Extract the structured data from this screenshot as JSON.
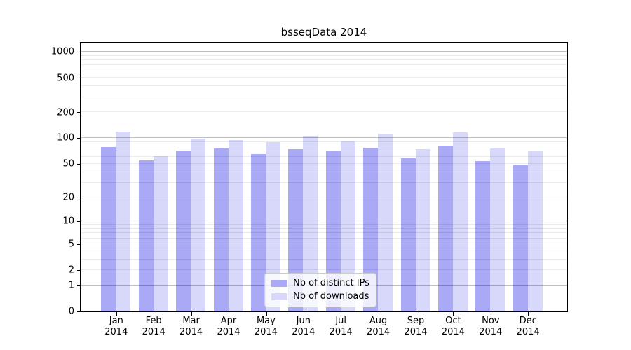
{
  "figure": {
    "title": "bsseqData 2014"
  },
  "legend": {
    "items": [
      {
        "label": "Nb of distinct IPs",
        "color": "#a9a9f6"
      },
      {
        "label": "Nb of downloads",
        "color": "#d8d8fa"
      }
    ]
  },
  "chart_data": {
    "type": "bar",
    "title": "bsseqData 2014",
    "categories": [
      "Jan",
      "Feb",
      "Mar",
      "Apr",
      "May",
      "Jun",
      "Jul",
      "Aug",
      "Sep",
      "Oct",
      "Nov",
      "Dec"
    ],
    "year": "2014",
    "series": [
      {
        "name": "Nb of distinct IPs",
        "color": "#a9a9f6",
        "values": [
          79,
          55,
          72,
          76,
          65,
          75,
          70,
          78,
          58,
          82,
          54,
          48
        ]
      },
      {
        "name": "Nb of downloads",
        "color": "#d8d8fa",
        "values": [
          120,
          62,
          98,
          96,
          90,
          106,
          91,
          113,
          75,
          117,
          76,
          70
        ]
      }
    ],
    "xlabel": "",
    "ylabel": "",
    "y_scale": "pseudo-log: y position proportional to log2(value+1), 0 at baseline",
    "y_ticks": [
      0,
      1,
      2,
      5,
      10,
      20,
      50,
      100,
      200,
      500,
      1000
    ],
    "grid": {
      "on": true,
      "major_lines": [
        1,
        10,
        100,
        1000
      ],
      "minor_lines_per_decade": [
        2,
        3,
        4,
        5,
        6,
        7,
        8,
        9
      ]
    },
    "legend_position": "lower center, inside axes",
    "bar_group_gap_note": "paired bars touching, gap between month groups"
  },
  "colors": {
    "background": "#ffffff",
    "frame": "#000000",
    "bar_ips": "#a9a9f6",
    "bar_downloads": "#d8d8fa",
    "grid_major": "rgba(0,0,0,0.25)",
    "grid_minor": "rgba(0,0,0,0.08)",
    "legend_border": "#cccccc",
    "text": "#000000"
  }
}
